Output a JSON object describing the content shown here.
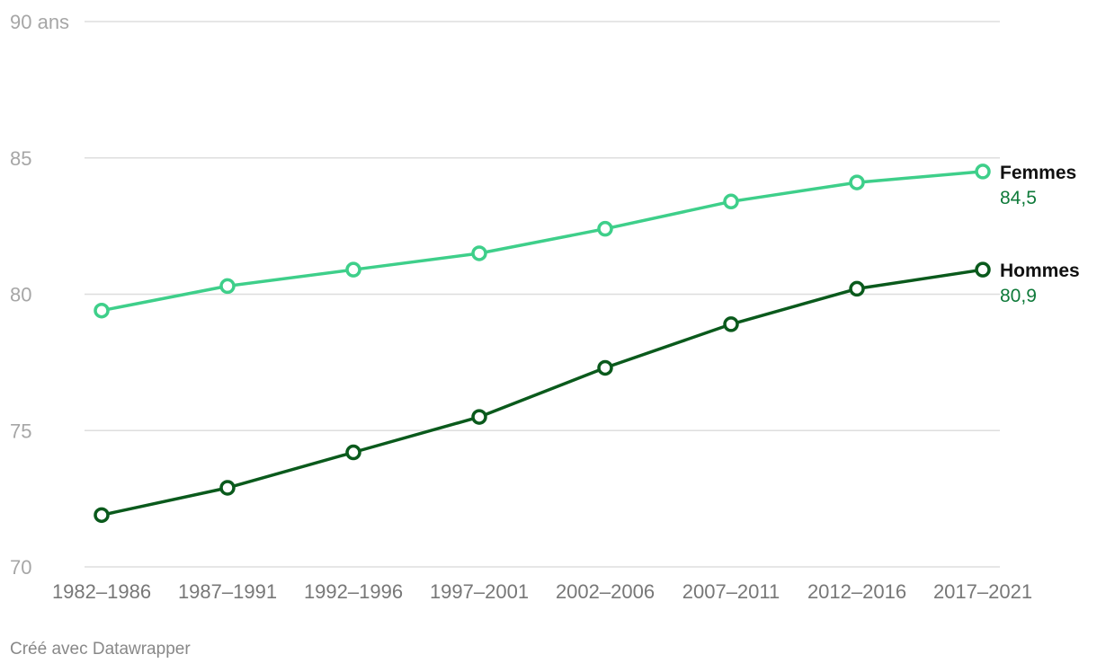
{
  "chart_data": {
    "type": "line",
    "categories": [
      "1982–1986",
      "1987–1991",
      "1992–1996",
      "1997–2001",
      "2002–2006",
      "2007–2011",
      "2012–2016",
      "2017–2021"
    ],
    "ylim": [
      70,
      90
    ],
    "yticks": [
      {
        "value": 70,
        "label": "70"
      },
      {
        "value": 75,
        "label": "75"
      },
      {
        "value": 80,
        "label": "80"
      },
      {
        "value": 85,
        "label": "85"
      },
      {
        "value": 90,
        "label": "90 ans"
      }
    ],
    "grid": true,
    "series": [
      {
        "name": "Femmes",
        "values": [
          79.4,
          80.3,
          80.9,
          81.5,
          82.4,
          83.4,
          84.1,
          84.5
        ],
        "end_label": "84,5",
        "color": "#3ecf8a"
      },
      {
        "name": "Hommes",
        "values": [
          71.9,
          72.9,
          74.2,
          75.5,
          77.3,
          78.9,
          80.2,
          80.9
        ],
        "end_label": "80,9",
        "color": "#0a5a1c"
      }
    ],
    "value_label_color": "#0f7a3a"
  },
  "footer": {
    "credit": "Créé avec Datawrapper"
  }
}
